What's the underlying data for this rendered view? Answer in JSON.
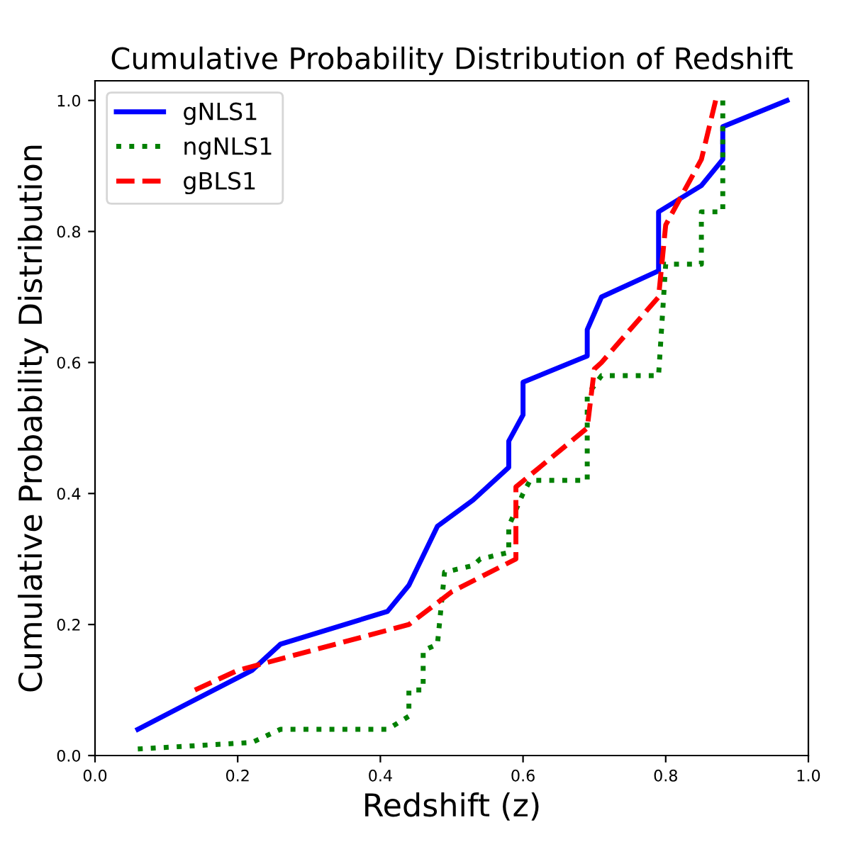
{
  "chart_data": {
    "type": "line",
    "title": "Cumulative Probability Distribution of Redshift",
    "xlabel": "Redshift (z)",
    "ylabel": "Cumulative Probability Distribution",
    "xlim": [
      0,
      1
    ],
    "ylim": [
      0,
      1.03
    ],
    "xticks": [
      {
        "value": 0,
        "label": "0.0"
      },
      0.2,
      0.4,
      0.6,
      0.8,
      {
        "value": 1,
        "label": "1.0"
      }
    ],
    "yticks": [
      {
        "value": 0,
        "label": "0.0"
      },
      0.2,
      0.4,
      0.6,
      0.8,
      {
        "value": 1,
        "label": "1.0"
      }
    ],
    "grid": false,
    "legend": "top left",
    "series": [
      {
        "name": "gNLS1",
        "color": "#0000ff",
        "line_style": "solid",
        "x": [
          0.06,
          0.22,
          0.26,
          0.41,
          0.44,
          0.48,
          0.53,
          0.58,
          0.58,
          0.6,
          0.6,
          0.69,
          0.69,
          0.71,
          0.79,
          0.79,
          0.85,
          0.88,
          0.88,
          0.97
        ],
        "values": [
          0.04,
          0.13,
          0.17,
          0.22,
          0.26,
          0.35,
          0.39,
          0.44,
          0.48,
          0.52,
          0.57,
          0.61,
          0.65,
          0.7,
          0.74,
          0.83,
          0.87,
          0.91,
          0.96,
          1.0
        ]
      },
      {
        "name": "ngNLS1",
        "color": "#008000",
        "line_style": "dotted",
        "x": [
          0.06,
          0.22,
          0.26,
          0.41,
          0.44,
          0.44,
          0.46,
          0.46,
          0.48,
          0.49,
          0.53,
          0.54,
          0.58,
          0.58,
          0.6,
          0.61,
          0.69,
          0.69,
          0.69,
          0.71,
          0.76,
          0.79,
          0.8,
          0.85,
          0.85,
          0.88,
          0.88
        ],
        "values": [
          0.01,
          0.02,
          0.04,
          0.04,
          0.06,
          0.1,
          0.1,
          0.16,
          0.17,
          0.28,
          0.29,
          0.3,
          0.31,
          0.35,
          0.4,
          0.42,
          0.42,
          0.49,
          0.55,
          0.58,
          0.58,
          0.58,
          0.75,
          0.75,
          0.83,
          0.83,
          1.0
        ]
      },
      {
        "name": "gBLS1",
        "color": "#ff0000",
        "line_style": "dashed",
        "x": [
          0.14,
          0.2,
          0.44,
          0.5,
          0.59,
          0.59,
          0.69,
          0.7,
          0.71,
          0.79,
          0.8,
          0.82,
          0.85,
          0.87
        ],
        "values": [
          0.1,
          0.13,
          0.2,
          0.25,
          0.3,
          0.41,
          0.5,
          0.59,
          0.6,
          0.7,
          0.81,
          0.85,
          0.91,
          1.0
        ]
      }
    ]
  }
}
